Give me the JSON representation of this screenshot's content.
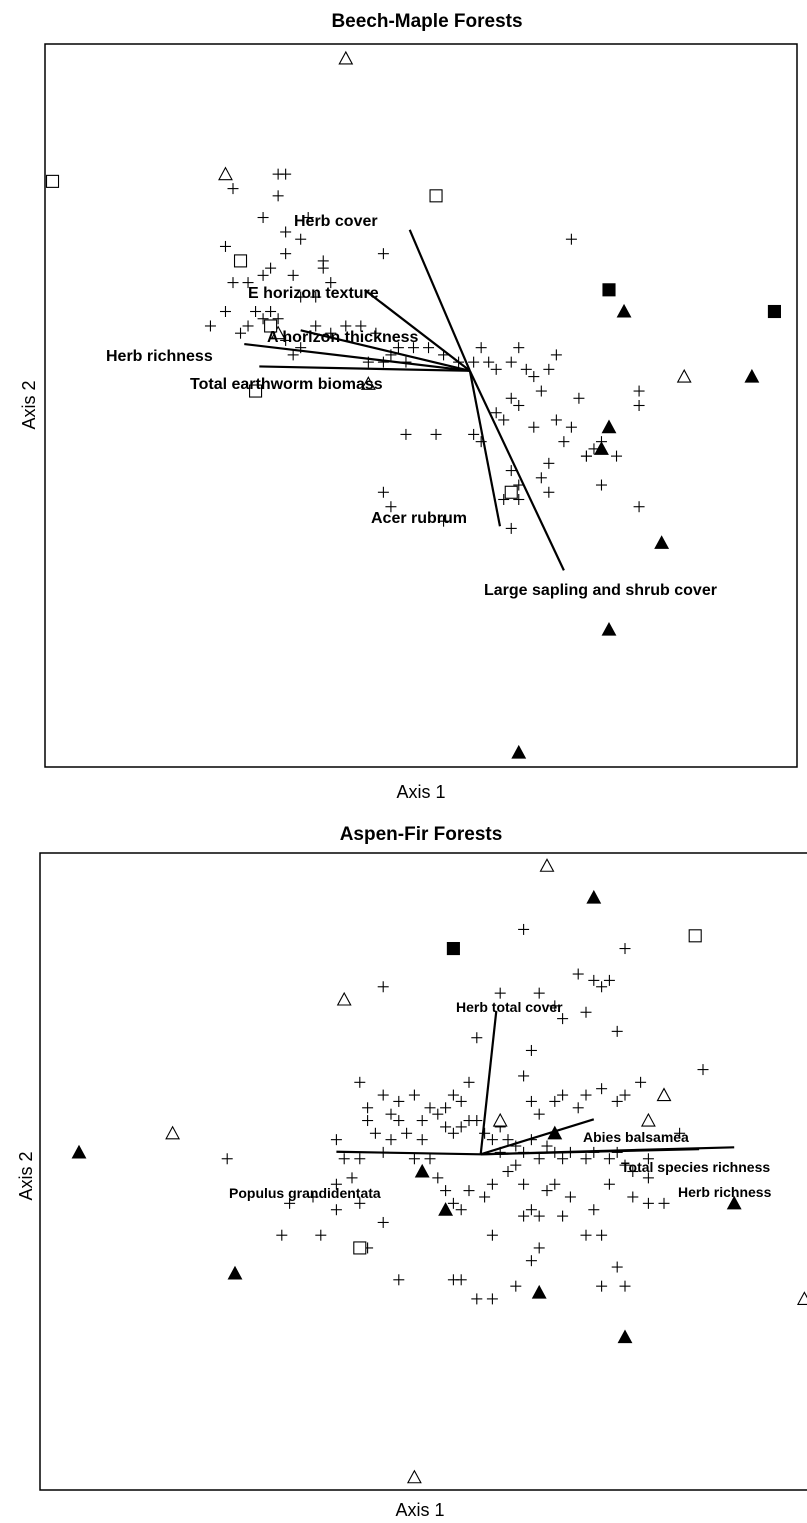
{
  "chart_data": [
    {
      "type": "scatter",
      "title": "Beech-Maple Forests",
      "xlabel": "Axis 1",
      "ylabel": "Axis 2",
      "xlim": [
        0,
        100
      ],
      "ylim": [
        0,
        100
      ],
      "grid": false,
      "origin": [
        56.5,
        54.8
      ],
      "vectors": [
        {
          "label": "Herb cover",
          "end": [
            48.5,
            74.3
          ]
        },
        {
          "label": "E horizon texture",
          "end": [
            42.5,
            66.0
          ]
        },
        {
          "label": "A horizon thickness",
          "end": [
            34.0,
            60.4
          ]
        },
        {
          "label": "Herb richness",
          "end": [
            26.5,
            58.5
          ]
        },
        {
          "label": "Total earthworm biomass",
          "end": [
            28.5,
            55.4
          ]
        },
        {
          "label": "Acer rubrum",
          "end": [
            60.5,
            33.3
          ]
        },
        {
          "label": "Large sapling and shrub cover",
          "end": [
            69.0,
            27.2
          ]
        }
      ],
      "series": [
        {
          "marker": "plus",
          "points": [
            [
              22,
              61
            ],
            [
              24,
              63
            ],
            [
              28,
              63
            ],
            [
              30,
              63
            ],
            [
              26,
              60
            ],
            [
              29,
              62
            ],
            [
              31,
              62
            ],
            [
              34,
              65
            ],
            [
              36,
              65
            ],
            [
              38,
              67
            ],
            [
              37,
              69
            ],
            [
              33,
              68
            ],
            [
              32,
              71
            ],
            [
              29,
              68
            ],
            [
              30,
              69
            ],
            [
              25,
              67
            ],
            [
              27,
              67
            ],
            [
              27,
              61
            ],
            [
              32,
              59
            ],
            [
              34,
              58
            ],
            [
              33,
              57
            ],
            [
              36,
              61
            ],
            [
              38,
              60
            ],
            [
              40,
              61
            ],
            [
              42,
              61
            ],
            [
              44,
              60
            ],
            [
              43,
              56
            ],
            [
              45,
              56
            ],
            [
              46,
              57
            ],
            [
              47,
              58
            ],
            [
              48,
              56
            ],
            [
              49,
              58
            ],
            [
              51,
              58
            ],
            [
              53,
              57
            ],
            [
              55,
              56
            ],
            [
              57,
              56
            ],
            [
              58,
              58
            ],
            [
              59,
              56
            ],
            [
              60,
              55
            ],
            [
              62,
              56
            ],
            [
              63,
              58
            ],
            [
              64,
              55
            ],
            [
              66,
              52
            ],
            [
              67,
              55
            ],
            [
              68,
              57
            ],
            [
              65,
              54
            ],
            [
              62,
              51
            ],
            [
              60,
              49
            ],
            [
              61,
              48
            ],
            [
              63,
              50
            ],
            [
              65,
              47
            ],
            [
              68,
              48
            ],
            [
              71,
              51
            ],
            [
              70,
              47
            ],
            [
              73,
              44
            ],
            [
              74,
              45
            ],
            [
              72,
              43
            ],
            [
              69,
              45
            ],
            [
              67,
              42
            ],
            [
              63,
              39
            ],
            [
              62,
              41
            ],
            [
              61,
              37
            ],
            [
              58,
              45
            ],
            [
              57,
              46
            ],
            [
              52,
              46
            ],
            [
              48,
              46
            ],
            [
              46,
              36
            ],
            [
              45,
              38
            ],
            [
              53,
              34
            ],
            [
              63,
              37
            ],
            [
              66,
              40
            ],
            [
              67,
              38
            ],
            [
              72,
              43
            ],
            [
              74,
              39
            ],
            [
              76,
              43
            ],
            [
              79,
              50
            ],
            [
              79,
              52
            ],
            [
              79,
              36
            ],
            [
              62,
              33
            ],
            [
              70,
              73
            ],
            [
              45,
              71
            ],
            [
              32,
              74
            ],
            [
              29,
              76
            ],
            [
              34,
              73
            ],
            [
              37,
              70
            ],
            [
              25,
              80
            ],
            [
              31,
              82
            ],
            [
              32,
              82
            ],
            [
              31,
              79
            ],
            [
              35,
              76
            ],
            [
              24,
              72
            ]
          ]
        },
        {
          "marker": "open-triangle",
          "points": [
            [
              40,
              98
            ],
            [
              24,
              82
            ],
            [
              31,
              60
            ],
            [
              43,
              53
            ],
            [
              85,
              54
            ]
          ]
        },
        {
          "marker": "open-square",
          "points": [
            [
              1,
              81
            ],
            [
              26,
              70
            ],
            [
              30,
              61
            ],
            [
              28,
              52
            ],
            [
              52,
              79
            ],
            [
              62,
              38
            ]
          ]
        },
        {
          "marker": "filled-triangle",
          "points": [
            [
              77,
              63
            ],
            [
              94,
              54
            ],
            [
              75,
              47
            ],
            [
              74,
              44
            ],
            [
              82,
              31
            ],
            [
              75,
              19
            ],
            [
              63,
              2
            ]
          ]
        },
        {
          "marker": "filled-square",
          "points": [
            [
              75,
              66
            ],
            [
              97,
              63
            ]
          ]
        }
      ]
    },
    {
      "type": "scatter",
      "title": "Aspen-Fir Forests",
      "xlabel": "Axis 1",
      "ylabel": "Axis 2",
      "xlim": [
        0,
        100
      ],
      "ylim": [
        0,
        100
      ],
      "grid": false,
      "origin": [
        56.5,
        52.7
      ],
      "vectors": [
        {
          "label": "Herb total cover",
          "end": [
            58.5,
            75.2
          ]
        },
        {
          "label": "Abies balsamea",
          "end": [
            71.0,
            58.2
          ]
        },
        {
          "label": "Total species richness",
          "end": [
            89.0,
            53.8
          ]
        },
        {
          "label": "Herb richness",
          "end": [
            84.5,
            53.5
          ]
        },
        {
          "label": "Populus grandidentata",
          "end": [
            38.0,
            53.1
          ]
        }
      ],
      "series": [
        {
          "marker": "plus",
          "points": [
            [
              62,
              88
            ],
            [
              75,
              85
            ],
            [
              69,
              81
            ],
            [
              72,
              79
            ],
            [
              71,
              80
            ],
            [
              73,
              80
            ],
            [
              59,
              78
            ],
            [
              64,
              78
            ],
            [
              66,
              76
            ],
            [
              67,
              74
            ],
            [
              70,
              75
            ],
            [
              74,
              72
            ],
            [
              63,
              69
            ],
            [
              62,
              65
            ],
            [
              63,
              61
            ],
            [
              64,
              59
            ],
            [
              66,
              61
            ],
            [
              67,
              62
            ],
            [
              69,
              60
            ],
            [
              70,
              62
            ],
            [
              72,
              63
            ],
            [
              74,
              61
            ],
            [
              75,
              62
            ],
            [
              77,
              64
            ],
            [
              56,
              71
            ],
            [
              55,
              64
            ],
            [
              54,
              61
            ],
            [
              53,
              62
            ],
            [
              52,
              60
            ],
            [
              51,
              59
            ],
            [
              52,
              57
            ],
            [
              53,
              56
            ],
            [
              54,
              57
            ],
            [
              55,
              58
            ],
            [
              56,
              58
            ],
            [
              57,
              56
            ],
            [
              58,
              55
            ],
            [
              59,
              57
            ],
            [
              60,
              55
            ],
            [
              61,
              54
            ],
            [
              62,
              53
            ],
            [
              63,
              55
            ],
            [
              64,
              52
            ],
            [
              65,
              54
            ],
            [
              66,
              53
            ],
            [
              67,
              52
            ],
            [
              68,
              53
            ],
            [
              70,
              52
            ],
            [
              71,
              53
            ],
            [
              73,
              52
            ],
            [
              74,
              53
            ],
            [
              75,
              51
            ],
            [
              76,
              50
            ],
            [
              78,
              52
            ],
            [
              61,
              51
            ],
            [
              62,
              48
            ],
            [
              58,
              48
            ],
            [
              57,
              46
            ],
            [
              55,
              47
            ],
            [
              54,
              44
            ],
            [
              53,
              45
            ],
            [
              52,
              47
            ],
            [
              51,
              49
            ],
            [
              50,
              52
            ],
            [
              49,
              55
            ],
            [
              48,
              52
            ],
            [
              47,
              56
            ],
            [
              46,
              58
            ],
            [
              45,
              55
            ],
            [
              44,
              53
            ],
            [
              43,
              56
            ],
            [
              42,
              58
            ],
            [
              41,
              52
            ],
            [
              40,
              49
            ],
            [
              39,
              52
            ],
            [
              38,
              55
            ],
            [
              42,
              60
            ],
            [
              41,
              64
            ],
            [
              44,
              62
            ],
            [
              45,
              59
            ],
            [
              46,
              61
            ],
            [
              48,
              62
            ],
            [
              49,
              58
            ],
            [
              50,
              60
            ],
            [
              59,
              53
            ],
            [
              60,
              50
            ],
            [
              63,
              44
            ],
            [
              64,
              43
            ],
            [
              65,
              47
            ],
            [
              66,
              48
            ],
            [
              67,
              43
            ],
            [
              68,
              46
            ],
            [
              70,
              40
            ],
            [
              71,
              44
            ],
            [
              73,
              48
            ],
            [
              78,
              49
            ],
            [
              80,
              45
            ],
            [
              82,
              56
            ],
            [
              85,
              66
            ],
            [
              58,
              40
            ],
            [
              62,
              43
            ],
            [
              64,
              38
            ],
            [
              72,
              40
            ],
            [
              76,
              46
            ],
            [
              78,
              45
            ],
            [
              74,
              35
            ],
            [
              72,
              32
            ],
            [
              75,
              32
            ],
            [
              56,
              30
            ],
            [
              53,
              33
            ],
            [
              46,
              33
            ],
            [
              44,
              42
            ],
            [
              41,
              45
            ],
            [
              38,
              48
            ],
            [
              36,
              40
            ],
            [
              35,
              46
            ],
            [
              32,
              45
            ],
            [
              38,
              44
            ],
            [
              42,
              38
            ],
            [
              54,
              33
            ],
            [
              58,
              30
            ],
            [
              61,
              32
            ],
            [
              63,
              36
            ],
            [
              44,
              79
            ],
            [
              24,
              52
            ],
            [
              31,
              40
            ]
          ]
        },
        {
          "marker": "open-triangle",
          "points": [
            [
              65,
              98
            ],
            [
              39,
              77
            ],
            [
              17,
              56
            ],
            [
              59,
              58
            ],
            [
              80,
              62
            ],
            [
              78,
              58
            ],
            [
              98,
              30
            ],
            [
              48,
              2
            ]
          ]
        },
        {
          "marker": "open-square",
          "points": [
            [
              84,
              87
            ],
            [
              41,
              38
            ]
          ]
        },
        {
          "marker": "filled-triangle",
          "points": [
            [
              71,
              93
            ],
            [
              5,
              53
            ],
            [
              49,
              50
            ],
            [
              66,
              56
            ],
            [
              52,
              44
            ],
            [
              89,
              45
            ],
            [
              25,
              34
            ],
            [
              64,
              31
            ],
            [
              75,
              24
            ]
          ]
        },
        {
          "marker": "filled-square",
          "points": [
            [
              53,
              85
            ]
          ]
        }
      ]
    }
  ]
}
